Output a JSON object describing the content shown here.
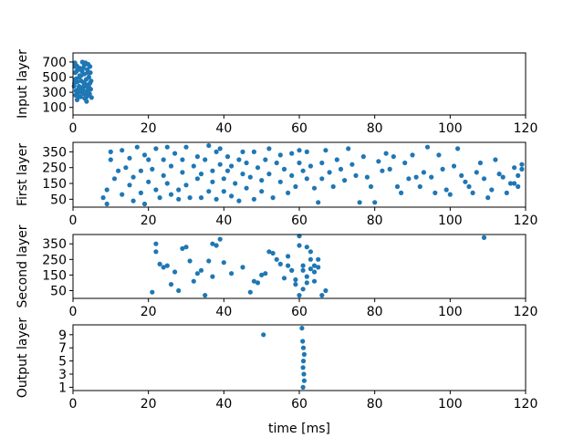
{
  "chart_data": [
    {
      "type": "scatter",
      "ylabel": "Input layer",
      "xlim": [
        0,
        120
      ],
      "x_ticks": [
        0,
        20,
        40,
        60,
        80,
        100,
        120
      ],
      "ylim": [
        0,
        820
      ],
      "y_ticks": [
        100,
        300,
        500,
        700
      ],
      "color": "#1f77b4",
      "points": [
        [
          0.5,
          690
        ],
        [
          1.0,
          650
        ],
        [
          1.4,
          600
        ],
        [
          0.6,
          560
        ],
        [
          1.8,
          520
        ],
        [
          0.9,
          480
        ],
        [
          2.2,
          450
        ],
        [
          0.4,
          420
        ],
        [
          1.6,
          380
        ],
        [
          2.5,
          350
        ],
        [
          0.8,
          320
        ],
        [
          1.3,
          300
        ],
        [
          2.9,
          280
        ],
        [
          0.7,
          260
        ],
        [
          2.0,
          240
        ],
        [
          3.1,
          220
        ],
        [
          1.1,
          200
        ],
        [
          3.6,
          180
        ],
        [
          0.5,
          640
        ],
        [
          2.7,
          620
        ],
        [
          3.3,
          690
        ],
        [
          4.0,
          670
        ],
        [
          4.5,
          640
        ],
        [
          3.8,
          600
        ],
        [
          2.4,
          580
        ],
        [
          4.6,
          560
        ],
        [
          3.0,
          540
        ],
        [
          1.7,
          500
        ],
        [
          4.2,
          500
        ],
        [
          3.5,
          470
        ],
        [
          4.8,
          450
        ],
        [
          2.8,
          430
        ],
        [
          4.1,
          400
        ],
        [
          3.4,
          380
        ],
        [
          1.9,
          360
        ],
        [
          4.7,
          340
        ],
        [
          3.7,
          320
        ],
        [
          2.3,
          300
        ],
        [
          4.4,
          280
        ],
        [
          3.9,
          260
        ],
        [
          1.5,
          250
        ],
        [
          4.9,
          230
        ],
        [
          0.9,
          270
        ],
        [
          2.6,
          330
        ],
        [
          3.2,
          410
        ],
        [
          1.2,
          440
        ],
        [
          4.3,
          360
        ],
        [
          2.1,
          520
        ],
        [
          0.3,
          380
        ],
        [
          3.0,
          660
        ],
        [
          1.0,
          580
        ],
        [
          4.5,
          420
        ],
        [
          2.5,
          700
        ],
        [
          3.6,
          240
        ],
        [
          1.4,
          340
        ],
        [
          4.0,
          300
        ],
        [
          0.6,
          470
        ],
        [
          2.9,
          390
        ],
        [
          3.9,
          560
        ],
        [
          1.8,
          620
        ]
      ]
    },
    {
      "type": "scatter",
      "ylabel": "First layer",
      "xlim": [
        0,
        120
      ],
      "x_ticks": [
        0,
        20,
        40,
        60,
        80,
        100,
        120
      ],
      "ylim": [
        0,
        410
      ],
      "y_ticks": [
        50,
        150,
        250,
        350
      ],
      "color": "#1f77b4",
      "points": [
        [
          8,
          60
        ],
        [
          9,
          20
        ],
        [
          9,
          110
        ],
        [
          10,
          300
        ],
        [
          10,
          350
        ],
        [
          11,
          180
        ],
        [
          12,
          230
        ],
        [
          13,
          80
        ],
        [
          13,
          360
        ],
        [
          14,
          250
        ],
        [
          15,
          310
        ],
        [
          15,
          140
        ],
        [
          16,
          40
        ],
        [
          16,
          190
        ],
        [
          17,
          380
        ],
        [
          18,
          230
        ],
        [
          18,
          90
        ],
        [
          19,
          330
        ],
        [
          19,
          20
        ],
        [
          20,
          300
        ],
        [
          20,
          160
        ],
        [
          21,
          240
        ],
        [
          22,
          110
        ],
        [
          22,
          370
        ],
        [
          23,
          60
        ],
        [
          24,
          300
        ],
        [
          24,
          200
        ],
        [
          25,
          150
        ],
        [
          25,
          380
        ],
        [
          26,
          80
        ],
        [
          26,
          260
        ],
        [
          27,
          340
        ],
        [
          28,
          110
        ],
        [
          28,
          50
        ],
        [
          29,
          220
        ],
        [
          29,
          300
        ],
        [
          30,
          380
        ],
        [
          30,
          140
        ],
        [
          31,
          60
        ],
        [
          32,
          260
        ],
        [
          33,
          320
        ],
        [
          33,
          180
        ],
        [
          34,
          60
        ],
        [
          34,
          210
        ],
        [
          35,
          300
        ],
        [
          36,
          100
        ],
        [
          36,
          390
        ],
        [
          37,
          230
        ],
        [
          37,
          160
        ],
        [
          38,
          350
        ],
        [
          38,
          50
        ],
        [
          39,
          370
        ],
        [
          39,
          270
        ],
        [
          40,
          180
        ],
        [
          40,
          100
        ],
        [
          41,
          230
        ],
        [
          41,
          320
        ],
        [
          42,
          70
        ],
        [
          42,
          260
        ],
        [
          43,
          150
        ],
        [
          44,
          300
        ],
        [
          44,
          40
        ],
        [
          45,
          210
        ],
        [
          45,
          350
        ],
        [
          46,
          120
        ],
        [
          46,
          280
        ],
        [
          47,
          190
        ],
        [
          48,
          50
        ],
        [
          48,
          350
        ],
        [
          49,
          250
        ],
        [
          50,
          170
        ],
        [
          50,
          100
        ],
        [
          51,
          300
        ],
        [
          52,
          370
        ],
        [
          52,
          210
        ],
        [
          53,
          60
        ],
        [
          54,
          280
        ],
        [
          55,
          160
        ],
        [
          55,
          330
        ],
        [
          56,
          240
        ],
        [
          57,
          90
        ],
        [
          58,
          200
        ],
        [
          58,
          340
        ],
        [
          59,
          130
        ],
        [
          60,
          280
        ],
        [
          60,
          360
        ],
        [
          61,
          230
        ],
        [
          62,
          180
        ],
        [
          62,
          350
        ],
        [
          63,
          260
        ],
        [
          64,
          120
        ],
        [
          65,
          30
        ],
        [
          66,
          280
        ],
        [
          66,
          180
        ],
        [
          67,
          360
        ],
        [
          68,
          220
        ],
        [
          69,
          130
        ],
        [
          70,
          300
        ],
        [
          71,
          240
        ],
        [
          72,
          170
        ],
        [
          73,
          370
        ],
        [
          74,
          270
        ],
        [
          75,
          200
        ],
        [
          76,
          30
        ],
        [
          77,
          320
        ],
        [
          78,
          190
        ],
        [
          79,
          130
        ],
        [
          80,
          30
        ],
        [
          81,
          290
        ],
        [
          82,
          230
        ],
        [
          83,
          340
        ],
        [
          84,
          240
        ],
        [
          85,
          320
        ],
        [
          86,
          130
        ],
        [
          87,
          90
        ],
        [
          88,
          280
        ],
        [
          89,
          180
        ],
        [
          90,
          330
        ],
        [
          91,
          190
        ],
        [
          92,
          130
        ],
        [
          93,
          220
        ],
        [
          94,
          380
        ],
        [
          95,
          190
        ],
        [
          96,
          90
        ],
        [
          97,
          330
        ],
        [
          98,
          240
        ],
        [
          99,
          110
        ],
        [
          100,
          80
        ],
        [
          101,
          260
        ],
        [
          102,
          370
        ],
        [
          103,
          200
        ],
        [
          104,
          160
        ],
        [
          105,
          130
        ],
        [
          106,
          90
        ],
        [
          107,
          220
        ],
        [
          108,
          280
        ],
        [
          109,
          180
        ],
        [
          110,
          60
        ],
        [
          111,
          110
        ],
        [
          112,
          300
        ],
        [
          113,
          210
        ],
        [
          114,
          190
        ],
        [
          115,
          90
        ],
        [
          116,
          150
        ],
        [
          117,
          250
        ],
        [
          118,
          200
        ],
        [
          118,
          130
        ],
        [
          119,
          270
        ],
        [
          119,
          240
        ],
        [
          117,
          150
        ]
      ]
    },
    {
      "type": "scatter",
      "ylabel": "Second layer",
      "xlim": [
        0,
        120
      ],
      "x_ticks": [
        0,
        20,
        40,
        60,
        80,
        100,
        120
      ],
      "ylim": [
        0,
        410
      ],
      "y_ticks": [
        50,
        150,
        250,
        350
      ],
      "color": "#1f77b4",
      "points": [
        [
          21,
          40
        ],
        [
          22,
          350
        ],
        [
          23,
          220
        ],
        [
          24,
          200
        ],
        [
          25,
          210
        ],
        [
          26,
          90
        ],
        [
          27,
          170
        ],
        [
          28,
          50
        ],
        [
          29,
          320
        ],
        [
          30,
          330
        ],
        [
          31,
          240
        ],
        [
          32,
          110
        ],
        [
          33,
          160
        ],
        [
          34,
          180
        ],
        [
          35,
          20
        ],
        [
          36,
          240
        ],
        [
          37,
          140
        ],
        [
          38,
          340
        ],
        [
          39,
          380
        ],
        [
          40,
          230
        ],
        [
          45,
          200
        ],
        [
          47,
          40
        ],
        [
          48,
          110
        ],
        [
          49,
          100
        ],
        [
          50,
          150
        ],
        [
          51,
          160
        ],
        [
          52,
          300
        ],
        [
          53,
          290
        ],
        [
          54,
          250
        ],
        [
          55,
          220
        ],
        [
          56,
          130
        ],
        [
          57,
          210
        ],
        [
          58,
          180
        ],
        [
          59,
          90
        ],
        [
          59,
          120
        ],
        [
          60,
          400
        ],
        [
          60,
          340
        ],
        [
          60,
          20
        ],
        [
          61,
          210
        ],
        [
          61,
          180
        ],
        [
          62,
          140
        ],
        [
          62,
          100
        ],
        [
          63,
          300
        ],
        [
          63,
          190
        ],
        [
          64,
          210
        ],
        [
          64,
          110
        ],
        [
          65,
          200
        ],
        [
          65,
          250
        ],
        [
          66,
          20
        ],
        [
          67,
          50
        ],
        [
          109,
          390
        ],
        [
          22,
          300
        ],
        [
          37,
          350
        ],
        [
          42,
          160
        ],
        [
          57,
          270
        ],
        [
          58,
          180
        ],
        [
          61,
          60
        ],
        [
          62,
          330
        ],
        [
          63,
          250
        ],
        [
          64,
          170
        ]
      ]
    },
    {
      "type": "scatter",
      "ylabel": "Output layer",
      "xlabel": "time [ms]",
      "xlim": [
        0,
        120
      ],
      "x_ticks": [
        0,
        20,
        40,
        60,
        80,
        100,
        120
      ],
      "ylim": [
        0.5,
        10.5
      ],
      "y_ticks": [
        1,
        3,
        5,
        7,
        9
      ],
      "y_tick_labels": [
        "1",
        "3",
        "5",
        "7",
        "9"
      ],
      "color": "#1f77b4",
      "points": [
        [
          50.5,
          9
        ],
        [
          60.7,
          10
        ],
        [
          60.9,
          8
        ],
        [
          61.1,
          7
        ],
        [
          61.3,
          6
        ],
        [
          61.1,
          5
        ],
        [
          61.0,
          4
        ],
        [
          61.2,
          3
        ],
        [
          61.3,
          2
        ],
        [
          61.0,
          1
        ]
      ]
    }
  ]
}
